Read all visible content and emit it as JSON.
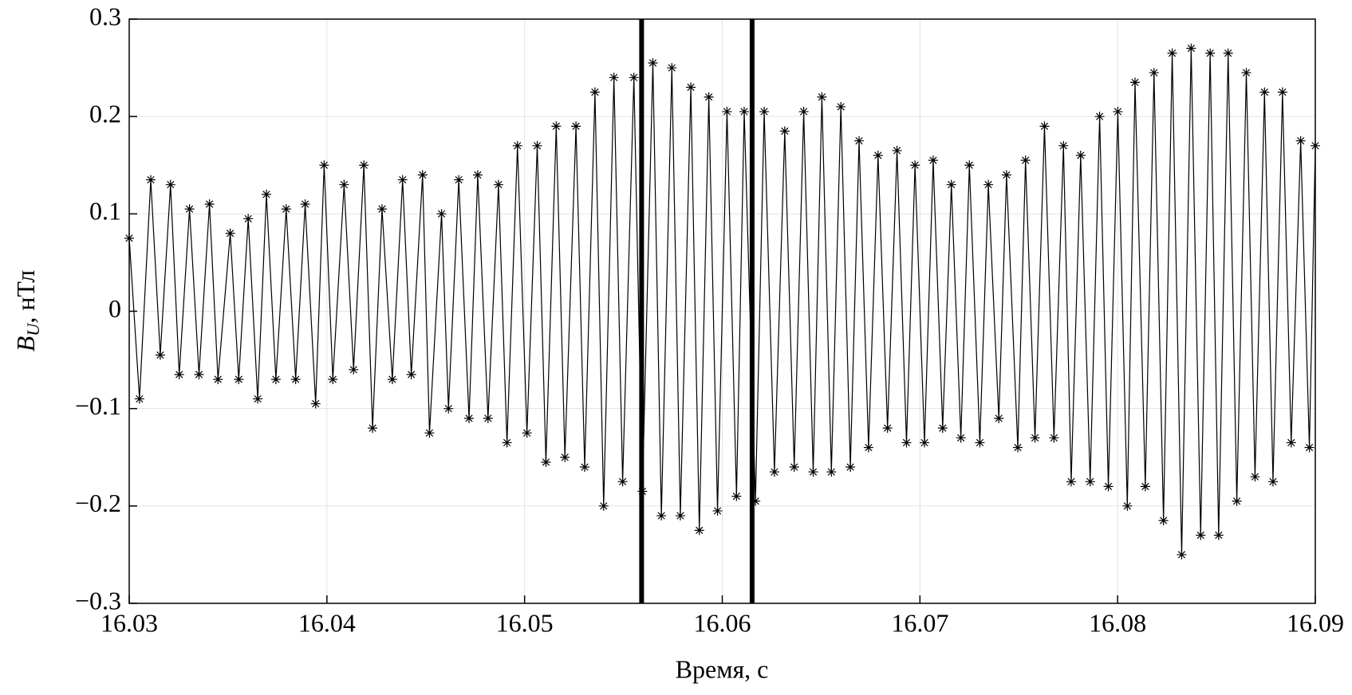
{
  "chart_data": {
    "type": "line",
    "xlabel": "Время, с",
    "ylabel": {
      "symbol": "B",
      "subscript": "U",
      "unit": ", нТл"
    },
    "xlim": [
      16.03,
      16.09
    ],
    "xticks": [
      16.03,
      16.04,
      16.05,
      16.06,
      16.07,
      16.08,
      16.09
    ],
    "ylim": [
      -0.3,
      0.3
    ],
    "yticks": [
      {
        "value": -0.3,
        "label": "−0.3"
      },
      {
        "value": -0.2,
        "label": "−0.2"
      },
      {
        "value": -0.1,
        "label": "−0.1"
      },
      0,
      0.1,
      0.2,
      0.3
    ],
    "grid": true,
    "marker": "asterisk",
    "vlines": [
      16.05592,
      16.06151
    ],
    "vline_color": "#000000",
    "series": [
      {
        "color": "#000000",
        "x": [
          16.03,
          16.03052,
          16.03109,
          16.03157,
          16.03209,
          16.03253,
          16.03305,
          16.03353,
          16.03406,
          16.03449,
          16.03511,
          16.03554,
          16.03602,
          16.0365,
          16.03694,
          16.03742,
          16.03794,
          16.03842,
          16.0389,
          16.03943,
          16.03986,
          16.0403,
          16.04087,
          16.04135,
          16.04187,
          16.04231,
          16.04279,
          16.04331,
          16.04383,
          16.04427,
          16.04484,
          16.04519,
          16.0458,
          16.04615,
          16.04667,
          16.04719,
          16.04763,
          16.04815,
          16.04868,
          16.04911,
          16.04964,
          16.05012,
          16.05064,
          16.05108,
          16.0516,
          16.05204,
          16.0526,
          16.05304,
          16.05356,
          16.054,
          16.05452,
          16.05496,
          16.05553,
          16.05596,
          16.05649,
          16.05692,
          16.05745,
          16.05788,
          16.05841,
          16.05884,
          16.05932,
          16.05976,
          16.06024,
          16.06072,
          16.06111,
          16.06168,
          16.06212,
          16.06264,
          16.06316,
          16.06364,
          16.06412,
          16.0646,
          16.06504,
          16.06552,
          16.066,
          16.06648,
          16.06692,
          16.0674,
          16.06788,
          16.06836,
          16.06884,
          16.06932,
          16.06975,
          16.07023,
          16.07067,
          16.07115,
          16.07159,
          16.07207,
          16.0725,
          16.07303,
          16.07346,
          16.07399,
          16.07438,
          16.07495,
          16.07534,
          16.07582,
          16.0763,
          16.07678,
          16.07726,
          16.07765,
          16.07813,
          16.07861,
          16.07909,
          16.07953,
          16.08001,
          16.08049,
          16.08088,
          16.0814,
          16.08184,
          16.08232,
          16.08276,
          16.08324,
          16.08372,
          16.0842,
          16.08468,
          16.08511,
          16.08559,
          16.08603,
          16.08651,
          16.08695,
          16.08743,
          16.08786,
          16.08834,
          16.08878,
          16.08926,
          16.0897,
          16.09
        ],
        "values": [
          0.075,
          -0.09,
          0.135,
          -0.045,
          0.13,
          -0.065,
          0.105,
          -0.065,
          0.11,
          -0.07,
          0.08,
          -0.07,
          0.095,
          -0.09,
          0.12,
          -0.07,
          0.105,
          -0.07,
          0.11,
          -0.095,
          0.15,
          -0.07,
          0.13,
          -0.06,
          0.15,
          -0.12,
          0.105,
          -0.07,
          0.135,
          -0.065,
          0.14,
          -0.125,
          0.1,
          -0.1,
          0.135,
          -0.11,
          0.14,
          -0.11,
          0.13,
          -0.135,
          0.17,
          -0.125,
          0.17,
          -0.155,
          0.19,
          -0.15,
          0.19,
          -0.16,
          0.225,
          -0.2,
          0.24,
          -0.175,
          0.24,
          -0.185,
          0.255,
          -0.21,
          0.25,
          -0.21,
          0.23,
          -0.225,
          0.22,
          -0.205,
          0.205,
          -0.19,
          0.205,
          -0.195,
          0.205,
          -0.165,
          0.185,
          -0.16,
          0.205,
          -0.165,
          0.22,
          -0.165,
          0.21,
          -0.16,
          0.175,
          -0.14,
          0.16,
          -0.12,
          0.165,
          -0.135,
          0.15,
          -0.135,
          0.155,
          -0.12,
          0.13,
          -0.13,
          0.15,
          -0.135,
          0.13,
          -0.11,
          0.14,
          -0.14,
          0.155,
          -0.13,
          0.19,
          -0.13,
          0.17,
          -0.175,
          0.16,
          -0.175,
          0.2,
          -0.18,
          0.205,
          -0.2,
          0.235,
          -0.18,
          0.245,
          -0.215,
          0.265,
          -0.25,
          0.27,
          -0.23,
          0.265,
          -0.23,
          0.265,
          -0.195,
          0.245,
          -0.17,
          0.225,
          -0.175,
          0.225,
          -0.135,
          0.175,
          -0.14,
          0.17
        ]
      }
    ]
  }
}
